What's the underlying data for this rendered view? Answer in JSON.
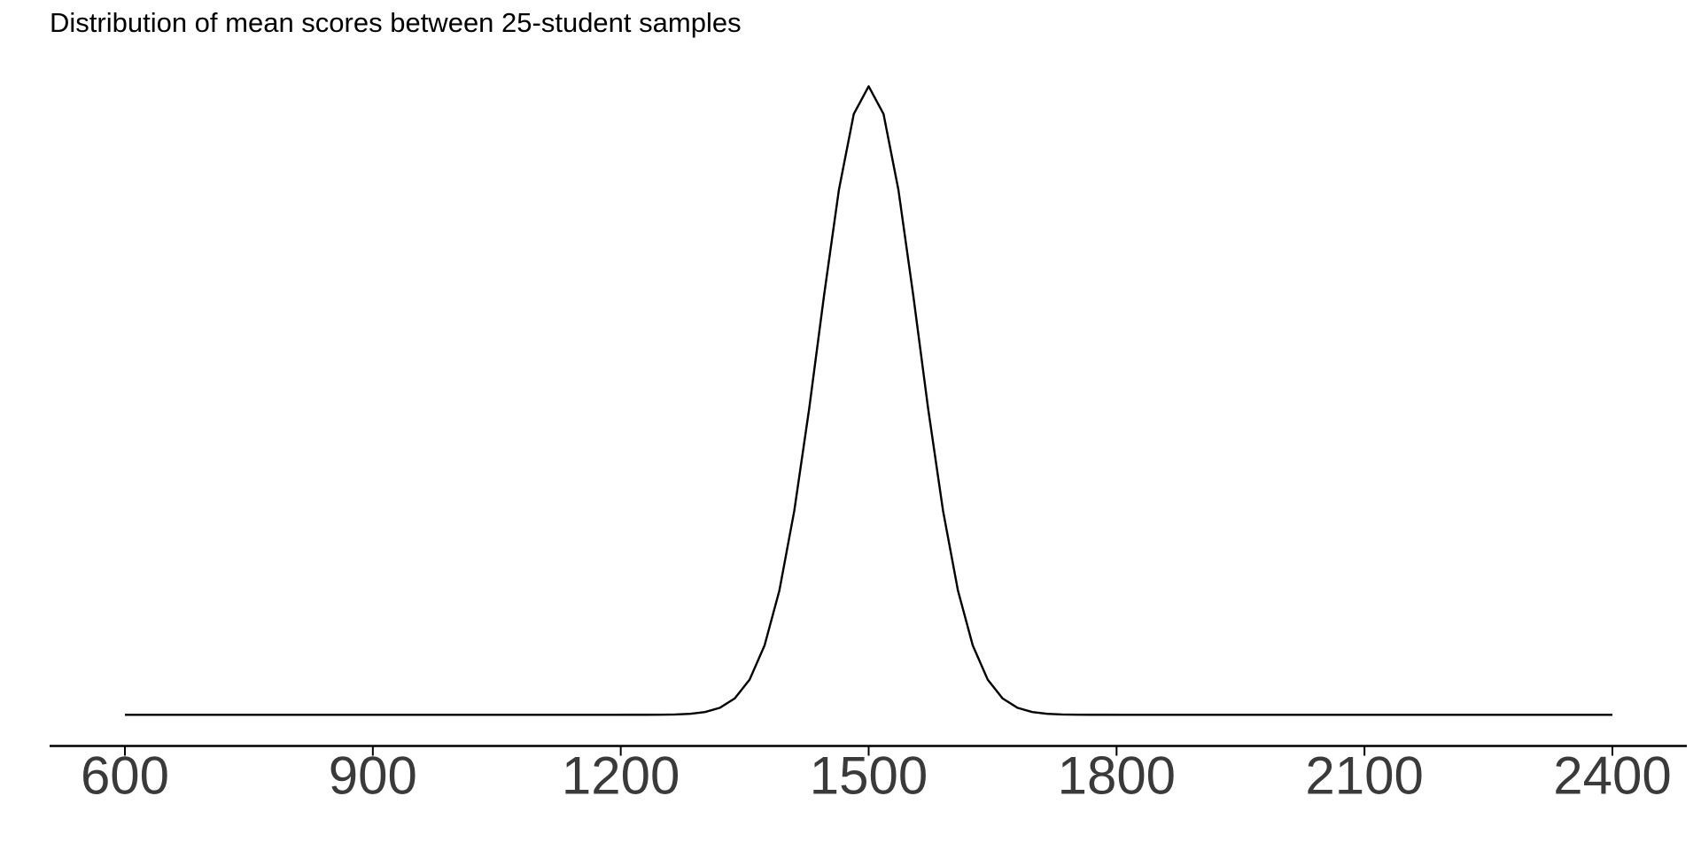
{
  "chart_data": {
    "type": "line",
    "title": "Distribution of mean scores between 25-student samples",
    "x": [
      600,
      618,
      636,
      654,
      672,
      690,
      708,
      726,
      744,
      762,
      780,
      798,
      816,
      834,
      852,
      870,
      888,
      906,
      924,
      942,
      960,
      978,
      996,
      1014,
      1032,
      1050,
      1068,
      1086,
      1104,
      1122,
      1140,
      1158,
      1176,
      1194,
      1212,
      1230,
      1248,
      1266,
      1284,
      1302,
      1320,
      1338,
      1356,
      1374,
      1392,
      1410,
      1428,
      1446,
      1464,
      1482,
      1500,
      1518,
      1536,
      1554,
      1572,
      1590,
      1608,
      1626,
      1644,
      1662,
      1680,
      1698,
      1716,
      1734,
      1752,
      1770,
      1788,
      1806,
      1824,
      1842,
      1860,
      1878,
      1896,
      1914,
      1932,
      1950,
      1968,
      1986,
      2004,
      2022,
      2040,
      2058,
      2076,
      2094,
      2112,
      2130,
      2148,
      2166,
      2184,
      2202,
      2220,
      2238,
      2256,
      2274,
      2292,
      2310,
      2328,
      2346,
      2364,
      2382,
      2400
    ],
    "values": [
      0,
      0,
      0,
      0,
      0,
      0,
      0,
      0,
      0,
      0,
      0,
      0,
      0,
      0,
      0,
      0,
      0,
      0,
      0,
      0,
      0,
      0,
      0,
      0,
      0,
      0,
      0,
      0,
      0,
      0,
      0,
      0,
      0,
      0,
      1e-07,
      3e-07,
      1e-06,
      3.3e-06,
      1.02e-05,
      2.87e-05,
      7.39e-05,
      0.000174,
      0.000373,
      0.000733,
      0.001316,
      0.002159,
      0.003237,
      0.004435,
      0.005554,
      0.006356,
      0.006649,
      0.006356,
      0.005554,
      0.004435,
      0.003237,
      0.002159,
      0.001316,
      0.000733,
      0.000373,
      0.000174,
      7.39e-05,
      2.87e-05,
      1.02e-05,
      3.3e-06,
      1e-06,
      3e-07,
      1e-07,
      0,
      0,
      0,
      0,
      0,
      0,
      0,
      0,
      0,
      0,
      0,
      0,
      0,
      0,
      0,
      0,
      0,
      0,
      0,
      0,
      0,
      0,
      0,
      0,
      0,
      0,
      0,
      0,
      0,
      0,
      0,
      0,
      0,
      0
    ],
    "color": "#000000",
    "xlim": [
      600,
      2400
    ],
    "xticks": [
      600,
      900,
      1200,
      1500,
      1800,
      2100,
      2400
    ],
    "ylim": [
      -0.00033,
      0.007
    ]
  }
}
